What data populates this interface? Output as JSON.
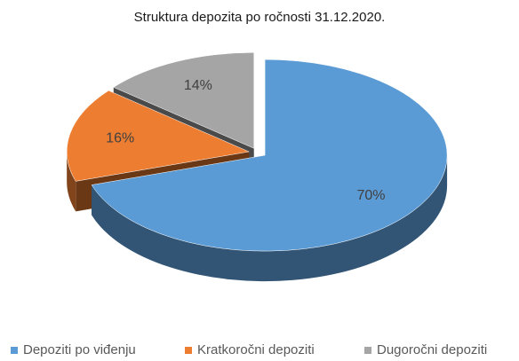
{
  "chart_data": {
    "type": "pie",
    "title": "Struktura depozita po ročnosti 31.12.2020.",
    "categories": [
      "Depoziti po viđenju",
      "Kratkoročni depoziti",
      "Dugoročni depoziti"
    ],
    "values": [
      70,
      16,
      14
    ],
    "value_labels": [
      "70%",
      "16%",
      "14%"
    ],
    "colors": [
      "#5b9bd5",
      "#ed7d31",
      "#a5a5a5"
    ],
    "legend": "bottom"
  }
}
